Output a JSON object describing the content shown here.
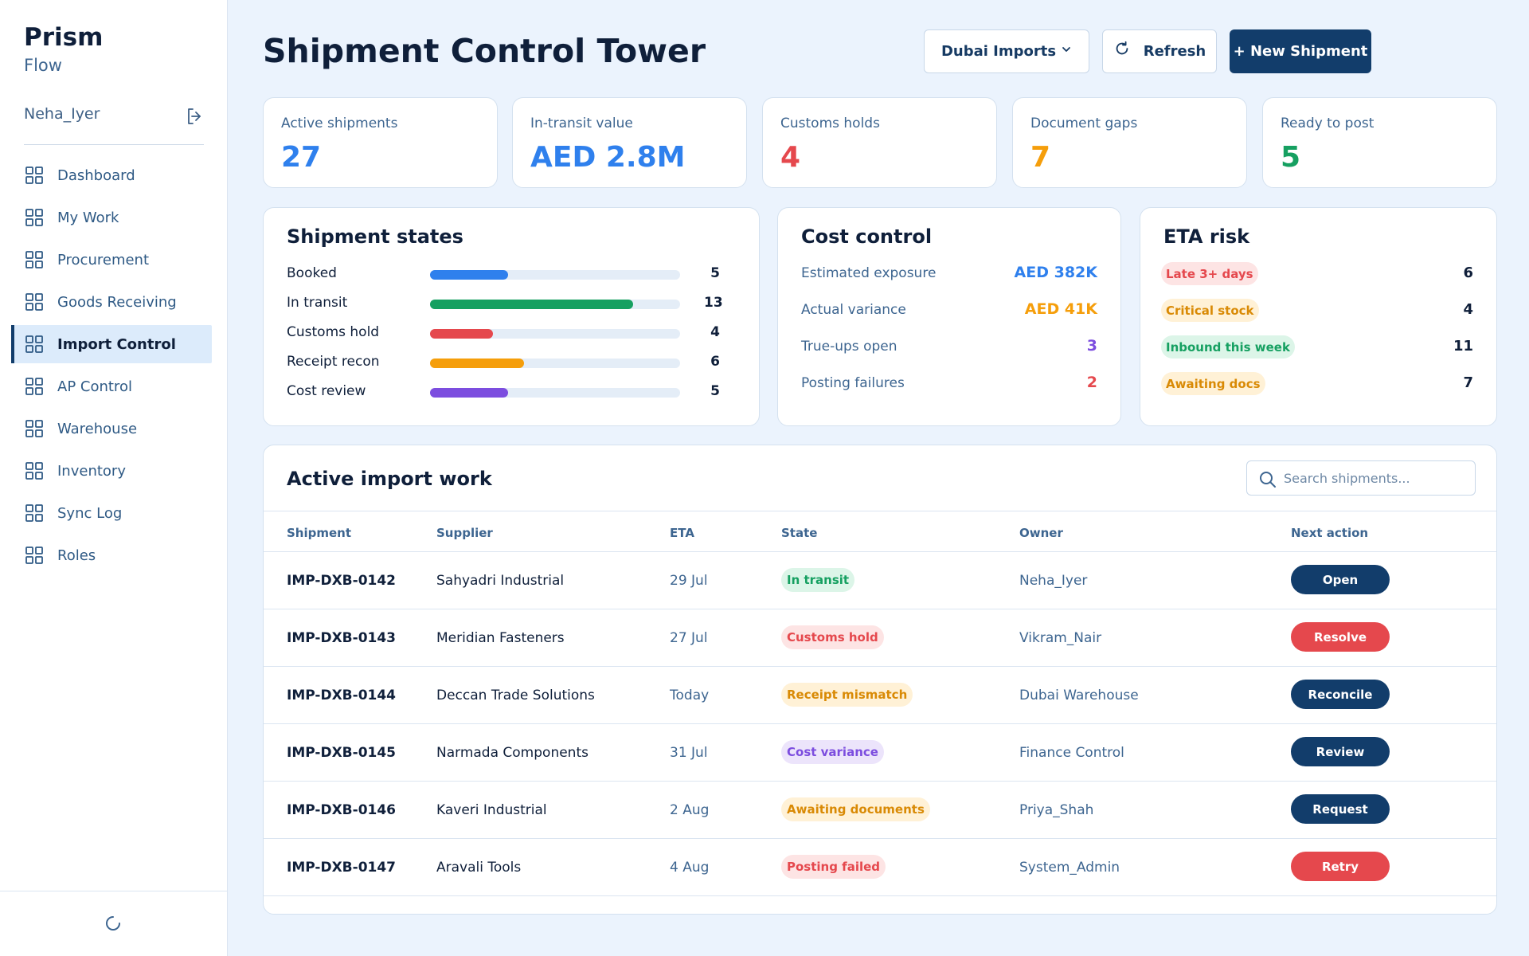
{
  "app": {
    "brand": "Prism",
    "brand_sub": "Flow",
    "user": "Neha_Iyer"
  },
  "sidebar": {
    "items": [
      {
        "label": "Dashboard",
        "icon": "grid-icon",
        "active": false
      },
      {
        "label": "My Work",
        "icon": "grid-icon",
        "active": false
      },
      {
        "label": "Procurement",
        "icon": "grid-icon",
        "active": false
      },
      {
        "label": "Goods Receiving",
        "icon": "grid-icon",
        "active": false
      },
      {
        "label": "Import Control",
        "icon": "grid-icon",
        "active": true
      },
      {
        "label": "AP Control",
        "icon": "grid-icon",
        "active": false
      },
      {
        "label": "Warehouse",
        "icon": "grid-icon",
        "active": false
      },
      {
        "label": "Inventory",
        "icon": "grid-icon",
        "active": false
      },
      {
        "label": "Sync Log",
        "icon": "grid-icon",
        "active": false
      },
      {
        "label": "Roles",
        "icon": "grid-icon",
        "active": false
      }
    ]
  },
  "header": {
    "title": "Shipment Control Tower",
    "entity": "Dubai Imports",
    "refresh": "Refresh",
    "new_shipment": "+ New Shipment"
  },
  "kpis": [
    {
      "label": "Active shipments",
      "value": "27",
      "color": "#2f80ed"
    },
    {
      "label": "In-transit value",
      "value": "AED 2.8M",
      "color": "#2f80ed"
    },
    {
      "label": "Customs holds",
      "value": "4",
      "color": "#e5484d"
    },
    {
      "label": "Document gaps",
      "value": "7",
      "color": "#f59e0b"
    },
    {
      "label": "Ready to post",
      "value": "5",
      "color": "#16a061"
    }
  ],
  "shipment_states": {
    "title": "Shipment states",
    "max": 16,
    "rows": [
      {
        "label": "Booked",
        "count": "5",
        "value": 5,
        "color": "#2f80ed"
      },
      {
        "label": "In transit",
        "count": "13",
        "value": 13,
        "color": "#16a061"
      },
      {
        "label": "Customs hold",
        "count": "4",
        "value": 4,
        "color": "#e5484d"
      },
      {
        "label": "Receipt recon",
        "count": "6",
        "value": 6,
        "color": "#f59e0b"
      },
      {
        "label": "Cost review",
        "count": "5",
        "value": 5,
        "color": "#7c4ddf"
      }
    ]
  },
  "cost_control": {
    "title": "Cost control",
    "rows": [
      {
        "label": "Estimated exposure",
        "value": "AED 382K",
        "color": "#2f80ed"
      },
      {
        "label": "Actual variance",
        "value": "AED 41K",
        "color": "#f59e0b"
      },
      {
        "label": "True-ups open",
        "value": "3",
        "color": "#7c4ddf"
      },
      {
        "label": "Posting failures",
        "value": "2",
        "color": "#e5484d"
      }
    ]
  },
  "eta_risk": {
    "title": "ETA risk",
    "rows": [
      {
        "label": "Late 3+ days",
        "count": "6",
        "fg": "#e5484d",
        "bg": "#fde4e4"
      },
      {
        "label": "Critical stock",
        "count": "4",
        "fg": "#d98a05",
        "bg": "#fff1d6"
      },
      {
        "label": "Inbound this week",
        "count": "11",
        "fg": "#16a061",
        "bg": "#dcf5e8"
      },
      {
        "label": "Awaiting docs",
        "count": "7",
        "fg": "#d98a05",
        "bg": "#fff1d6"
      }
    ]
  },
  "work_table": {
    "title": "Active import work",
    "search_placeholder": "Search shipments...",
    "columns": [
      "Shipment",
      "Supplier",
      "ETA",
      "State",
      "Owner",
      "Next action"
    ],
    "rows": [
      {
        "shipment": "IMP-DXB-0142",
        "supplier": "Sahyadri Industrial",
        "eta": "29 Jul",
        "state": "In transit",
        "state_fg": "#16a061",
        "state_bg": "#dcf5e8",
        "owner": "Neha_Iyer",
        "action": "Open",
        "action_color": "#123d6b"
      },
      {
        "shipment": "IMP-DXB-0143",
        "supplier": "Meridian Fasteners",
        "eta": "27 Jul",
        "state": "Customs hold",
        "state_fg": "#e5484d",
        "state_bg": "#fde4e4",
        "owner": "Vikram_Nair",
        "action": "Resolve",
        "action_color": "#e5484d"
      },
      {
        "shipment": "IMP-DXB-0144",
        "supplier": "Deccan Trade Solutions",
        "eta": "Today",
        "state": "Receipt mismatch",
        "state_fg": "#d98a05",
        "state_bg": "#fff1d6",
        "owner": "Dubai Warehouse",
        "action": "Reconcile",
        "action_color": "#123d6b"
      },
      {
        "shipment": "IMP-DXB-0145",
        "supplier": "Narmada Components",
        "eta": "31 Jul",
        "state": "Cost variance",
        "state_fg": "#7c4ddf",
        "state_bg": "#ece4fb",
        "owner": "Finance Control",
        "action": "Review",
        "action_color": "#123d6b"
      },
      {
        "shipment": "IMP-DXB-0146",
        "supplier": "Kaveri Industrial",
        "eta": "2 Aug",
        "state": "Awaiting documents",
        "state_fg": "#d98a05",
        "state_bg": "#fff1d6",
        "owner": "Priya_Shah",
        "action": "Request",
        "action_color": "#123d6b"
      },
      {
        "shipment": "IMP-DXB-0147",
        "supplier": "Aravali Tools",
        "eta": "4 Aug",
        "state": "Posting failed",
        "state_fg": "#e5484d",
        "state_bg": "#fde4e4",
        "owner": "System_Admin",
        "action": "Retry",
        "action_color": "#e5484d"
      }
    ]
  }
}
